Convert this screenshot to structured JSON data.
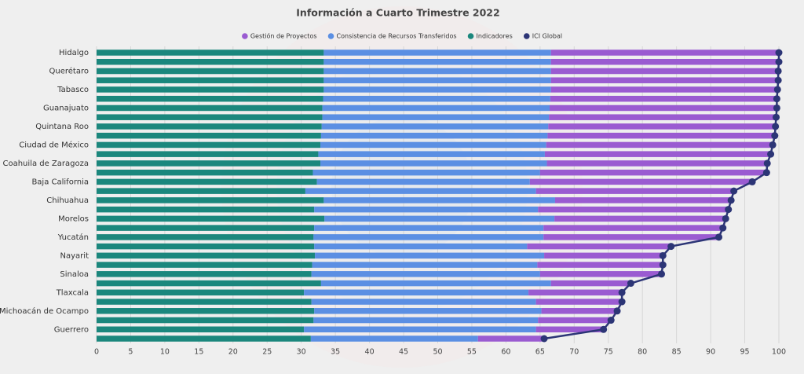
{
  "chart_data": {
    "type": "bar",
    "stacked": true,
    "orientation": "horizontal",
    "title": "Información a Cuarto Trimestre 2022",
    "categories": [
      "Hidalgo",
      null,
      "Querétaro",
      null,
      "Tabasco",
      null,
      "Guanajuato",
      null,
      "Quintana Roo",
      null,
      "Ciudad de México",
      null,
      "Coahuila de Zaragoza",
      null,
      "Baja California",
      null,
      "Chihuahua",
      null,
      "Morelos",
      null,
      "Yucatán",
      null,
      "Nayarit",
      null,
      "Sinaloa",
      null,
      "Tlaxcala",
      null,
      "Michoacán de Ocampo",
      null,
      "Guerrero",
      null
    ],
    "series": [
      {
        "name": "Gestión de Proyectos",
        "color": "#9a5bd1",
        "values": [
          33.4,
          33.4,
          33.3,
          33.3,
          33.2,
          33.2,
          33.3,
          33.3,
          33.3,
          33.3,
          33.2,
          33.1,
          32.3,
          33.2,
          32.6,
          29.0,
          25.8,
          27.9,
          25.1,
          26.3,
          25.7,
          21.1,
          17.4,
          18.4,
          17.8,
          11.7,
          13.7,
          12.6,
          11.1,
          10.7,
          9.9,
          9.7
        ]
      },
      {
        "name": "Consistencia de Recursos Transferidos",
        "color": "#5b8fe3",
        "values": [
          33.3,
          33.3,
          33.3,
          33.3,
          33.3,
          33.3,
          33.3,
          33.2,
          33.2,
          33.2,
          33.1,
          33.2,
          33.2,
          33.3,
          31.2,
          33.8,
          33.9,
          32.8,
          33.7,
          33.6,
          33.7,
          31.2,
          33.6,
          33.0,
          33.5,
          33.7,
          32.9,
          32.9,
          33.3,
          32.9,
          34.0,
          24.5
        ]
      },
      {
        "name": "Indicadores",
        "color": "#1b877d",
        "values": [
          33.3,
          33.3,
          33.3,
          33.3,
          33.3,
          33.2,
          33.1,
          33.1,
          33.0,
          32.9,
          32.8,
          32.5,
          32.8,
          31.7,
          32.3,
          30.6,
          33.3,
          31.9,
          33.4,
          31.9,
          31.8,
          31.9,
          32.0,
          31.6,
          31.5,
          32.9,
          30.4,
          31.5,
          31.9,
          31.8,
          30.4,
          31.4
        ]
      },
      {
        "name": "ICI Global",
        "type": "line",
        "color": "#2c3576",
        "values": [
          100,
          100,
          99.9,
          99.9,
          99.8,
          99.7,
          99.7,
          99.6,
          99.5,
          99.4,
          99.1,
          98.8,
          98.3,
          98.2,
          96.1,
          93.4,
          93.0,
          92.6,
          92.2,
          91.8,
          91.2,
          84.2,
          83.0,
          83.0,
          82.8,
          78.3,
          77.0,
          77.0,
          76.3,
          75.4,
          74.3,
          65.6
        ]
      }
    ],
    "stack_order": [
      "Indicadores",
      "Consistencia de Recursos Transferidos",
      "Gestión de Proyectos"
    ],
    "xlim": [
      0,
      100
    ],
    "xticks": [
      0,
      5,
      10,
      15,
      20,
      25,
      30,
      35,
      40,
      45,
      50,
      55,
      60,
      65,
      70,
      75,
      80,
      85,
      90,
      95,
      100
    ],
    "grid": true,
    "legend": "top"
  }
}
